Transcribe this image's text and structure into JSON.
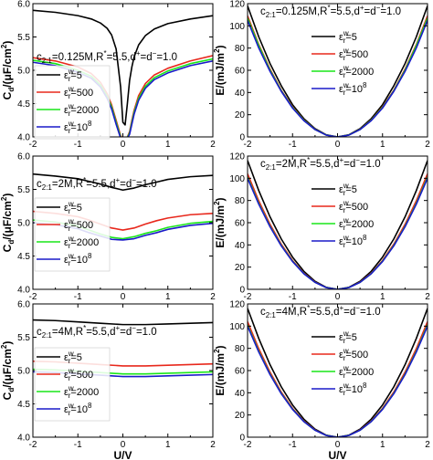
{
  "colors": {
    "eps5": "#000000",
    "eps500": "#e8281c",
    "eps2000": "#19e619",
    "eps1e8": "#1a1ac8"
  },
  "legend_labels": [
    "5",
    "500",
    "2000",
    "10"
  ],
  "legend_label_exponent": "8",
  "chart_data": [
    {
      "type": "line",
      "panel": "top-left",
      "annotation": {
        "main": "c",
        "sub": "2:1",
        "rest": "=0.125M,R",
        "sup1": "*",
        "rest2": "=5.5,d",
        "sup2": "+",
        "rest3": "=d",
        "sup3": "−",
        "rest4": "=1.0"
      },
      "ylabel": "C",
      "ylabel_sub": "d",
      "ylabel_unit": "/(μF/cm",
      "ylabel_sup": "2",
      "ylabel_end": ")",
      "xlabel": "",
      "xlim": [
        -2,
        2
      ],
      "ylim": [
        4.0,
        6.0
      ],
      "xticks": [
        -2,
        -1,
        0,
        1,
        2
      ],
      "xtick_labels": [
        "-2",
        "-1",
        "0",
        "1",
        "2"
      ],
      "yticks": [
        4.0,
        4.5,
        5.0,
        5.5,
        6.0
      ],
      "ytick_labels": [
        "4.0",
        "4.5",
        "5.0",
        "5.5",
        "6.0"
      ],
      "legend": "bottom-left",
      "x": [
        -2,
        -1.5,
        -1,
        -0.7,
        -0.5,
        -0.35,
        -0.25,
        -0.15,
        -0.05,
        0.0,
        0.05,
        0.1,
        0.15,
        0.2,
        0.25,
        0.35,
        0.5,
        0.7,
        1,
        1.5,
        2
      ],
      "series": [
        {
          "key": "eps5",
          "values": [
            5.9,
            5.87,
            5.82,
            5.77,
            5.71,
            5.63,
            5.53,
            5.32,
            4.75,
            4.22,
            4.18,
            4.5,
            4.85,
            5.05,
            5.2,
            5.38,
            5.52,
            5.62,
            5.7,
            5.77,
            5.82
          ]
        },
        {
          "key": "eps500",
          "values": [
            5.19,
            5.14,
            5.05,
            4.95,
            4.82,
            4.65,
            4.48,
            4.25,
            4.02,
            3.97,
            3.97,
            4.0,
            4.08,
            4.25,
            4.4,
            4.62,
            4.8,
            4.93,
            5.03,
            5.14,
            5.22
          ]
        },
        {
          "key": "eps2000",
          "values": [
            5.15,
            5.1,
            5.0,
            4.91,
            4.78,
            4.61,
            4.45,
            4.22,
            4.0,
            3.96,
            3.96,
            3.99,
            4.06,
            4.22,
            4.37,
            4.58,
            4.76,
            4.89,
            4.99,
            5.1,
            5.17
          ]
        },
        {
          "key": "eps1e8",
          "values": [
            5.12,
            5.07,
            4.97,
            4.88,
            4.75,
            4.58,
            4.42,
            4.19,
            3.98,
            3.95,
            3.95,
            3.98,
            4.04,
            4.19,
            4.34,
            4.55,
            4.73,
            4.86,
            4.96,
            5.07,
            5.14
          ]
        }
      ]
    },
    {
      "type": "line",
      "panel": "top-right",
      "annotation": {
        "main": "c",
        "sub": "2:1",
        "rest": "=0.125M,R",
        "sup1": "*",
        "rest2": "=5.5,d",
        "sup2": "+",
        "rest3": "=d",
        "sup3": "−",
        "rest4": "=1.0"
      },
      "ylabel": "E/(mJ/m",
      "ylabel_sup": "2",
      "ylabel_end": ")",
      "xlabel": "",
      "xlim": [
        -2,
        2
      ],
      "ylim": [
        0,
        120
      ],
      "xticks": [
        -2,
        -1,
        0,
        1,
        2
      ],
      "xtick_labels": [
        "-2",
        "-1",
        "0",
        "1",
        "2"
      ],
      "yticks": [
        0,
        20,
        40,
        60,
        80,
        100,
        120
      ],
      "ytick_labels": [
        "0",
        "20",
        "40",
        "60",
        "80",
        "100",
        "120"
      ],
      "legend": "top-right",
      "x": [
        -2,
        -1.75,
        -1.5,
        -1.25,
        -1,
        -0.75,
        -0.5,
        -0.25,
        0,
        0.25,
        0.5,
        0.75,
        1,
        1.25,
        1.5,
        1.75,
        2
      ],
      "series": [
        {
          "key": "eps5",
          "values": [
            118,
            90,
            66,
            46,
            29,
            16.5,
            7.4,
            1.9,
            0,
            1.9,
            7.4,
            16.5,
            29,
            46,
            66,
            90,
            118
          ]
        },
        {
          "key": "eps500",
          "values": [
            109,
            83,
            61,
            42,
            27,
            15.2,
            6.8,
            1.7,
            0,
            1.7,
            6.8,
            15.2,
            27,
            42,
            61,
            83,
            109
          ]
        },
        {
          "key": "eps2000",
          "values": [
            107,
            82,
            60,
            41.5,
            26.5,
            15.0,
            6.7,
            1.7,
            0,
            1.7,
            6.7,
            15.0,
            26.5,
            41.5,
            60,
            82,
            107
          ]
        },
        {
          "key": "eps1e8",
          "values": [
            105,
            80,
            59,
            41,
            26,
            14.7,
            6.6,
            1.6,
            0,
            1.6,
            6.6,
            14.7,
            26,
            41,
            59,
            80,
            105
          ]
        }
      ]
    },
    {
      "type": "line",
      "panel": "middle-left",
      "annotation": {
        "main": "c",
        "sub": "2:1",
        "rest": "=2M,R",
        "sup1": "*",
        "rest2": "=5.5,d",
        "sup2": "+",
        "rest3": "=d",
        "sup3": "−",
        "rest4": "=1.0"
      },
      "ylabel": "C",
      "ylabel_sub": "d",
      "ylabel_unit": "/(μF/cm",
      "ylabel_sup": "2",
      "ylabel_end": ")",
      "xlabel": "",
      "xlim": [
        -2,
        2
      ],
      "ylim": [
        4.0,
        6.0
      ],
      "xticks": [
        -2,
        -1,
        0,
        1,
        2
      ],
      "xtick_labels": [
        "-2",
        "-1",
        "0",
        "1",
        "2"
      ],
      "yticks": [
        4.0,
        4.5,
        5.0,
        5.5,
        6.0
      ],
      "ytick_labels": [
        "4.0",
        "4.5",
        "5.0",
        "5.5",
        "6.0"
      ],
      "legend": "bottom-left",
      "x": [
        -2,
        -1.5,
        -1,
        -0.75,
        -0.5,
        -0.25,
        0,
        0.25,
        0.5,
        0.75,
        1,
        1.5,
        2
      ],
      "series": [
        {
          "key": "eps5",
          "values": [
            5.73,
            5.7,
            5.66,
            5.62,
            5.58,
            5.53,
            5.49,
            5.52,
            5.57,
            5.61,
            5.65,
            5.69,
            5.71
          ]
        },
        {
          "key": "eps500",
          "values": [
            5.17,
            5.14,
            5.09,
            5.04,
            4.98,
            4.92,
            4.89,
            4.92,
            4.98,
            5.03,
            5.07,
            5.12,
            5.14
          ]
        },
        {
          "key": "eps2000",
          "values": [
            5.04,
            5.01,
            4.95,
            4.89,
            4.83,
            4.78,
            4.76,
            4.79,
            4.84,
            4.88,
            4.93,
            4.99,
            5.02
          ]
        },
        {
          "key": "eps1e8",
          "values": [
            5.0,
            4.97,
            4.91,
            4.85,
            4.8,
            4.75,
            4.74,
            4.76,
            4.81,
            4.85,
            4.9,
            4.96,
            4.99
          ]
        }
      ]
    },
    {
      "type": "line",
      "panel": "middle-right",
      "annotation": {
        "main": "c",
        "sub": "2:1",
        "rest": "=2M,R",
        "sup1": "*",
        "rest2": "=5.5,d",
        "sup2": "+",
        "rest3": "=d",
        "sup3": "−",
        "rest4": "=1.0"
      },
      "ylabel": "E/(mJ/m",
      "ylabel_sup": "2",
      "ylabel_end": ")",
      "xlabel": "",
      "xlim": [
        -2,
        2
      ],
      "ylim": [
        0,
        120
      ],
      "xticks": [
        -2,
        -1,
        0,
        1,
        2
      ],
      "xtick_labels": [
        "-2",
        "-1",
        "0",
        "1",
        "2"
      ],
      "yticks": [
        0,
        20,
        40,
        60,
        80,
        100,
        120
      ],
      "ytick_labels": [
        "0",
        "20",
        "40",
        "60",
        "80",
        "100",
        "120"
      ],
      "legend": "top-right",
      "x": [
        -2,
        -1.75,
        -1.5,
        -1.25,
        -1,
        -0.75,
        -0.5,
        -0.25,
        0,
        0.25,
        0.5,
        0.75,
        1,
        1.25,
        1.5,
        1.75,
        2
      ],
      "series": [
        {
          "key": "eps5",
          "values": [
            116,
            88.8,
            65.2,
            45.3,
            29,
            16.3,
            7.25,
            1.8,
            0,
            1.8,
            7.25,
            16.3,
            29,
            45.3,
            65.2,
            88.8,
            116
          ]
        },
        {
          "key": "eps500",
          "values": [
            104,
            79.6,
            58.5,
            40.6,
            26,
            14.6,
            6.5,
            1.6,
            0,
            1.6,
            6.5,
            14.6,
            26,
            40.6,
            58.5,
            79.6,
            104
          ]
        },
        {
          "key": "eps2000",
          "values": [
            101,
            77.3,
            56.8,
            39.5,
            25.3,
            14.2,
            6.3,
            1.6,
            0,
            1.6,
            6.3,
            14.2,
            25.3,
            39.5,
            56.8,
            77.3,
            101
          ]
        },
        {
          "key": "eps1e8",
          "values": [
            100,
            76.6,
            56.3,
            39.1,
            25,
            14.1,
            6.25,
            1.55,
            0,
            1.55,
            6.25,
            14.1,
            25,
            39.1,
            56.3,
            76.6,
            100
          ]
        }
      ]
    },
    {
      "type": "line",
      "panel": "bottom-left",
      "annotation": {
        "main": "c",
        "sub": "2:1",
        "rest": "=4M,R",
        "sup1": "*",
        "rest2": "=5.5,d",
        "sup2": "+",
        "rest3": "=d",
        "sup3": "−",
        "rest4": "=1.0"
      },
      "ylabel": "C",
      "ylabel_sub": "d",
      "ylabel_unit": "/(μF/cm",
      "ylabel_sup": "2",
      "ylabel_end": ")",
      "xlabel": "U/V",
      "xlim": [
        -2,
        2
      ],
      "ylim": [
        4.0,
        6.0
      ],
      "xticks": [
        -2,
        -1,
        0,
        1,
        2
      ],
      "xtick_labels": [
        "-2",
        "-1",
        "0",
        "1",
        "2"
      ],
      "yticks": [
        4.0,
        4.5,
        5.0,
        5.5,
        6.0
      ],
      "ytick_labels": [
        "4.0",
        "4.5",
        "5.0",
        "5.5",
        "6.0"
      ],
      "legend": "bottom-left",
      "x": [
        -2,
        -1.5,
        -1,
        -0.5,
        0,
        0.5,
        1,
        1.5,
        2
      ],
      "series": [
        {
          "key": "eps5",
          "values": [
            5.76,
            5.75,
            5.73,
            5.71,
            5.69,
            5.69,
            5.7,
            5.71,
            5.72
          ]
        },
        {
          "key": "eps500",
          "values": [
            5.14,
            5.13,
            5.11,
            5.09,
            5.07,
            5.07,
            5.08,
            5.09,
            5.1
          ]
        },
        {
          "key": "eps2000",
          "values": [
            5.02,
            5.01,
            4.99,
            4.97,
            4.95,
            4.95,
            4.96,
            4.97,
            4.98
          ]
        },
        {
          "key": "eps1e8",
          "values": [
            4.98,
            4.97,
            4.95,
            4.93,
            4.91,
            4.91,
            4.92,
            4.93,
            4.94
          ]
        }
      ]
    },
    {
      "type": "line",
      "panel": "bottom-right",
      "annotation": {
        "main": "c",
        "sub": "2:1",
        "rest": "=4M,R",
        "sup1": "*",
        "rest2": "=5.5,d",
        "sup2": "+",
        "rest3": "=d",
        "sup3": "−",
        "rest4": "=1.0"
      },
      "ylabel": "E/(mJ/m",
      "ylabel_sup": "2",
      "ylabel_end": ")",
      "xlabel": "U/V",
      "xlim": [
        -2,
        2
      ],
      "ylim": [
        0,
        120
      ],
      "xticks": [
        -2,
        -1,
        0,
        1,
        2
      ],
      "xtick_labels": [
        "-2",
        "-1",
        "0",
        "1",
        "2"
      ],
      "yticks": [
        0,
        20,
        40,
        60,
        80,
        100,
        120
      ],
      "ytick_labels": [
        "0",
        "20",
        "40",
        "60",
        "80",
        "100",
        "120"
      ],
      "legend": "top-right",
      "x": [
        -2,
        -1.75,
        -1.5,
        -1.25,
        -1,
        -0.75,
        -0.5,
        -0.25,
        0,
        0.25,
        0.5,
        0.75,
        1,
        1.25,
        1.5,
        1.75,
        2
      ],
      "series": [
        {
          "key": "eps5",
          "values": [
            116,
            88.8,
            65.2,
            45.3,
            29,
            16.3,
            7.25,
            1.8,
            0,
            1.8,
            7.25,
            16.3,
            29,
            45.3,
            65.2,
            88.8,
            116
          ]
        },
        {
          "key": "eps500",
          "values": [
            104,
            79.6,
            58.5,
            40.6,
            26,
            14.6,
            6.5,
            1.6,
            0,
            1.6,
            6.5,
            14.6,
            26,
            40.6,
            58.5,
            79.6,
            104
          ]
        },
        {
          "key": "eps2000",
          "values": [
            101,
            77.3,
            56.8,
            39.5,
            25.3,
            14.2,
            6.3,
            1.6,
            0,
            1.6,
            6.3,
            14.2,
            25.3,
            39.5,
            56.8,
            77.3,
            101
          ]
        },
        {
          "key": "eps1e8",
          "values": [
            100,
            76.6,
            56.3,
            39.1,
            25,
            14.1,
            6.25,
            1.55,
            0,
            1.55,
            6.25,
            14.1,
            25,
            39.1,
            56.3,
            76.6,
            100
          ]
        }
      ]
    }
  ]
}
